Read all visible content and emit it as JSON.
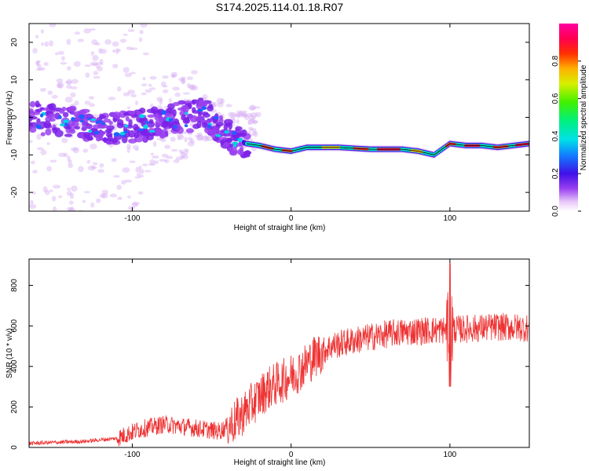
{
  "title": "S174.2025.114.01.18.R07",
  "chart_data": [
    {
      "type": "heatmap",
      "xlabel": "Height of straight line (km)",
      "ylabel": "Frequency (Hz)",
      "xlim": [
        -165,
        150
      ],
      "ylim": [
        -25,
        25
      ],
      "xticks": [
        -100,
        0,
        100
      ],
      "yticks": [
        -20,
        -10,
        0,
        10,
        20
      ],
      "colorbar": {
        "label": "Normalized spectral amplitude",
        "range": [
          0,
          1
        ],
        "ticks": [
          "0.0",
          "0.2",
          "0.4",
          "0.6",
          "0.8"
        ],
        "tick_values": [
          0,
          0.2,
          0.4,
          0.6,
          0.8
        ]
      },
      "ridge": {
        "x": [
          -165,
          -150,
          -130,
          -110,
          -90,
          -70,
          -55,
          -45,
          -35,
          -28,
          -20,
          -10,
          0,
          10,
          30,
          50,
          70,
          80,
          85,
          90,
          95,
          100,
          110,
          120,
          130,
          140,
          150
        ],
        "y": [
          0,
          -1,
          -2,
          -3,
          -2,
          0,
          1,
          -3,
          -6,
          -7,
          -7.5,
          -8.5,
          -9,
          -8,
          -8,
          -8.5,
          -8.5,
          -9,
          -9.5,
          -10,
          -8.5,
          -7,
          -7.5,
          -7.5,
          -8,
          -7.5,
          -7
        ]
      }
    },
    {
      "type": "line",
      "xlabel": "Height of straight line (km)",
      "ylabel": "SNR (10 * v/v)",
      "xlim": [
        -165,
        150
      ],
      "ylim": [
        0,
        930
      ],
      "xticks": [
        -100,
        0,
        100
      ],
      "yticks": [
        0,
        200,
        400,
        600,
        800
      ],
      "color": "#ee3333",
      "trend": {
        "x": [
          -165,
          -130,
          -110,
          -95,
          -80,
          -60,
          -45,
          -35,
          -25,
          -15,
          -5,
          5,
          15,
          25,
          35,
          50,
          65,
          80,
          95,
          110,
          130,
          150
        ],
        "y": [
          20,
          30,
          45,
          90,
          115,
          95,
          80,
          130,
          210,
          290,
          330,
          380,
          450,
          500,
          520,
          545,
          565,
          575,
          580,
          585,
          595,
          590
        ]
      },
      "spike": {
        "x": 100,
        "max": 910,
        "min": 300
      }
    }
  ]
}
